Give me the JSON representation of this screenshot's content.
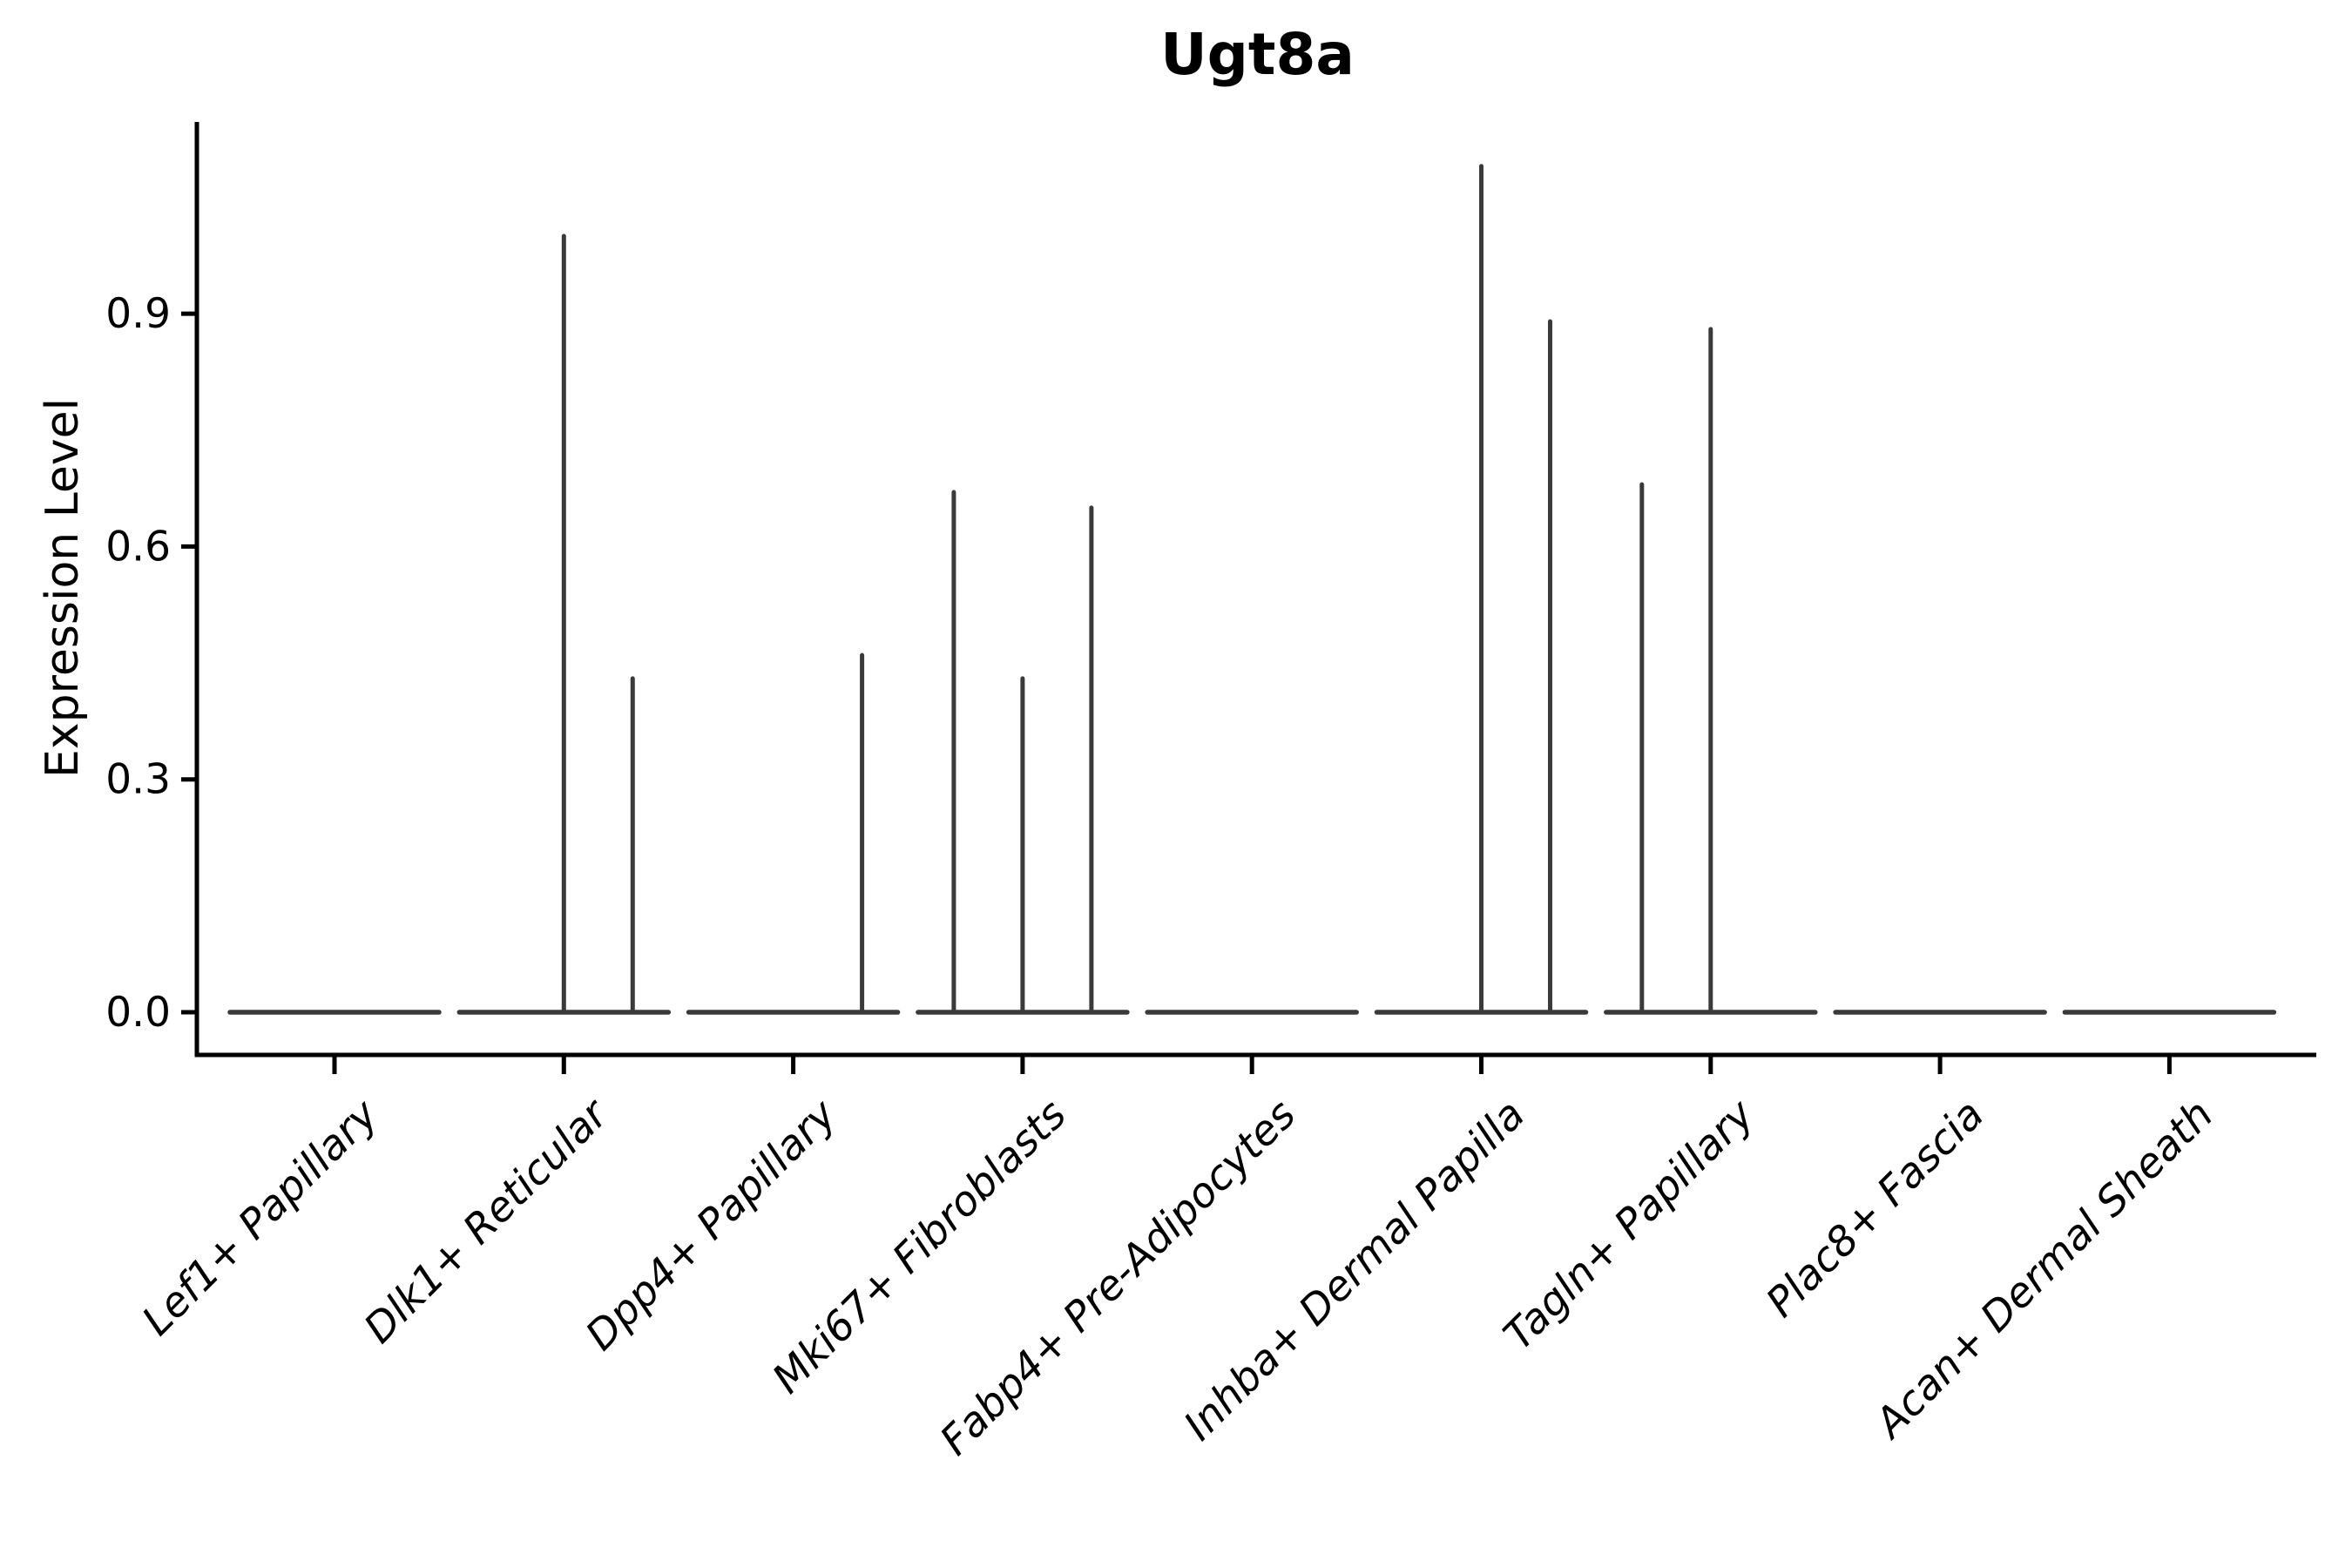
{
  "title": "Ugt8a",
  "y_axis": {
    "label": "Expression Level",
    "tick_labels": [
      "0.0",
      "0.3",
      "0.6",
      "0.9"
    ]
  },
  "chart_data": {
    "type": "violin",
    "title": "Ugt8a",
    "xlabel": "",
    "ylabel": "Expression Level",
    "yticks": [
      0.0,
      0.3,
      0.6,
      0.9
    ],
    "ytick_labels": [
      "0.0",
      "0.3",
      "0.6",
      "0.9"
    ],
    "ylim": [
      -0.055,
      1.147
    ],
    "grid": false,
    "legend": "none",
    "x_tick_rotation_deg": 45,
    "categories": [
      "Lef1+ Papillary",
      "Dlk1+ Reticular",
      "Dpp4+ Papillary",
      "Mki67+ Fibroblasts",
      "Fabp4+ Pre-Adipocytes",
      "Inhba+ Dermal Papilla",
      "Tagln+ Papillary",
      "Plac8+ Fascia",
      "Acan+ Dermal Sheath"
    ],
    "sub_violin_offsets": {
      "left": -0.3,
      "center": 0,
      "right": 0.3
    },
    "violins": [
      {
        "category": "Lef1+ Papillary",
        "baseline": 0.0,
        "spikes": []
      },
      {
        "category": "Dlk1+ Reticular",
        "baseline": 0.0,
        "spikes": [
          {
            "offset": 0,
            "max": 1.0
          },
          {
            "offset": 0.3,
            "max": 0.43
          }
        ]
      },
      {
        "category": "Dpp4+ Papillary",
        "baseline": 0.0,
        "spikes": [
          {
            "offset": 0.3,
            "max": 0.46
          }
        ]
      },
      {
        "category": "Mki67+ Fibroblasts",
        "baseline": 0.0,
        "spikes": [
          {
            "offset": -0.3,
            "max": 0.67
          },
          {
            "offset": 0,
            "max": 0.43
          },
          {
            "offset": 0.3,
            "max": 0.65
          }
        ]
      },
      {
        "category": "Fabp4+ Pre-Adipocytes",
        "baseline": 0.0,
        "spikes": []
      },
      {
        "category": "Inhba+ Dermal Papilla",
        "baseline": 0.0,
        "spikes": [
          {
            "offset": 0,
            "max": 1.09
          },
          {
            "offset": 0.3,
            "max": 0.89
          }
        ]
      },
      {
        "category": "Tagln+ Papillary",
        "baseline": 0.0,
        "spikes": [
          {
            "offset": -0.3,
            "max": 0.68
          },
          {
            "offset": 0,
            "max": 0.88
          }
        ]
      },
      {
        "category": "Plac8+ Fascia",
        "baseline": 0.0,
        "spikes": []
      },
      {
        "category": "Acan+ Dermal Sheath",
        "baseline": 0.0,
        "spikes": []
      }
    ],
    "colors": {
      "violin_stroke": "#3a3a3a",
      "axis": "#000000",
      "text": "#000000",
      "background": "#ffffff"
    }
  }
}
